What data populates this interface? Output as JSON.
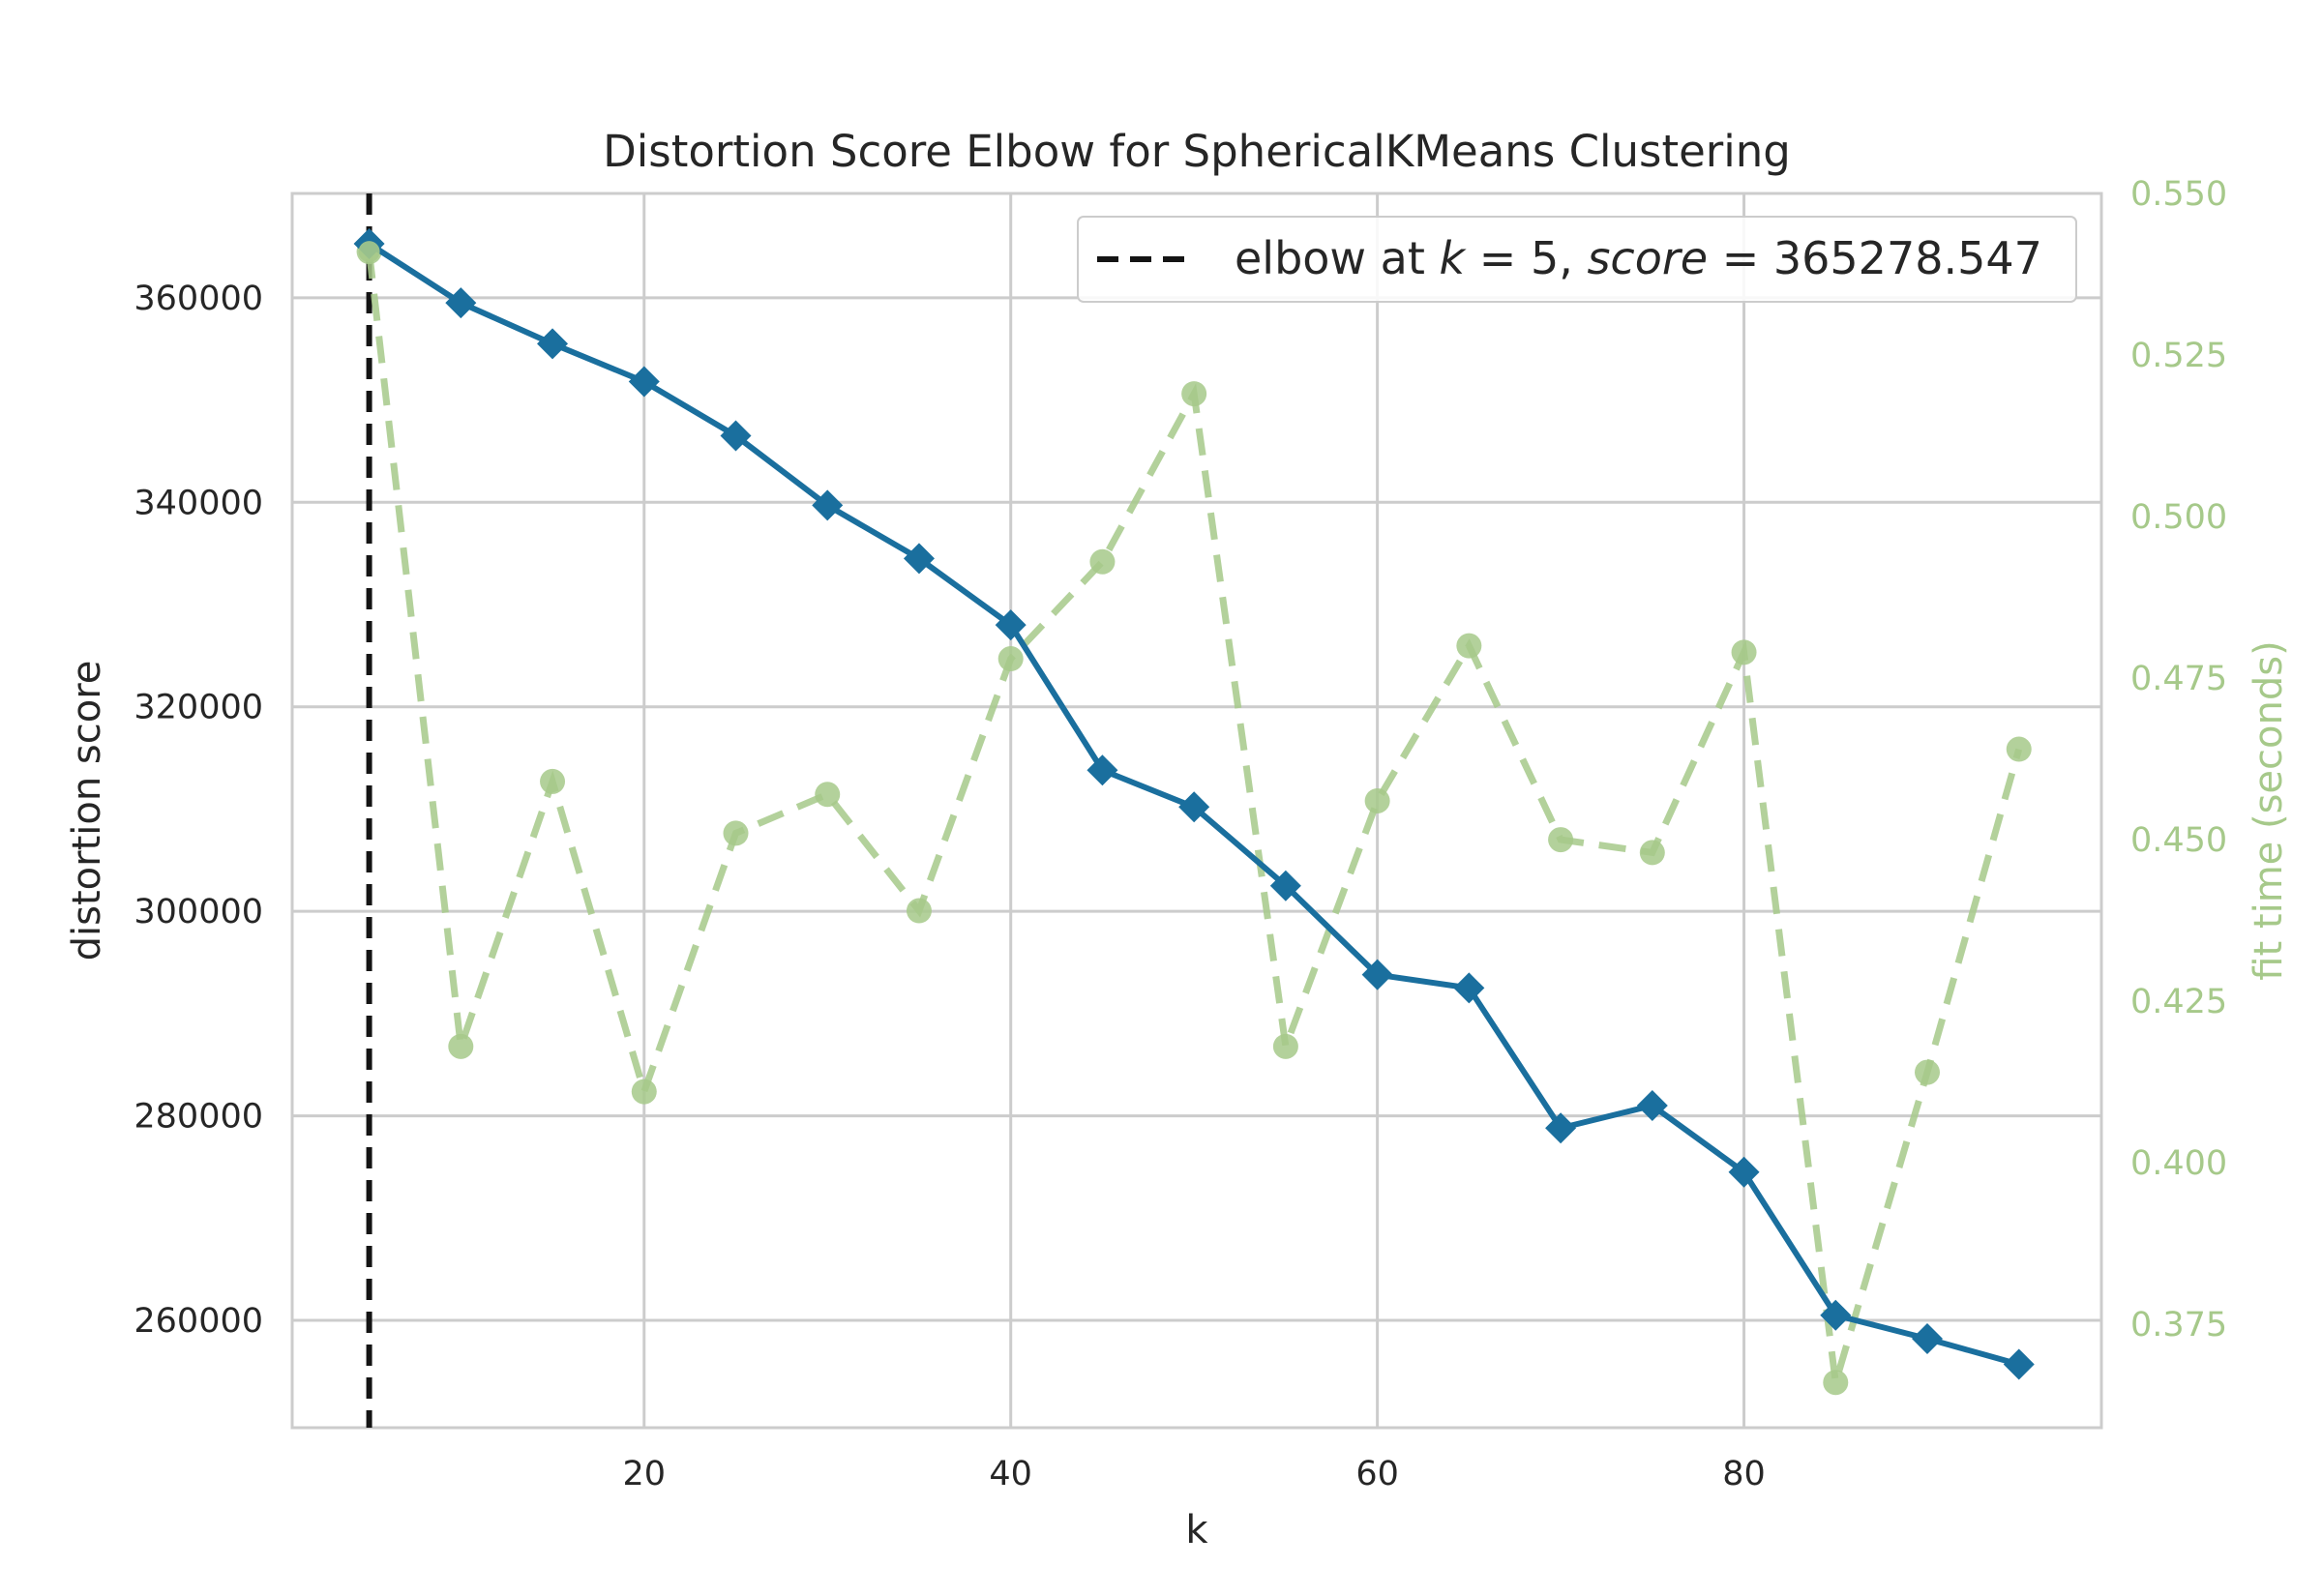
{
  "chart_data": {
    "type": "line",
    "title": "Distortion Score Elbow for SphericalKMeans Clustering",
    "xlabel": "k",
    "ylabel": "distortion score",
    "y2label": "fit time (seconds)",
    "xlim": [
      0.8,
      99.5
    ],
    "ylim": [
      249500,
      370200
    ],
    "y2lim": [
      0.359,
      0.55
    ],
    "xticks": [
      20,
      40,
      60,
      80
    ],
    "yticks": [
      260000,
      280000,
      300000,
      320000,
      340000,
      360000
    ],
    "y2ticks": [
      0.375,
      0.4,
      0.425,
      0.45,
      0.475,
      0.5,
      0.525,
      0.55
    ],
    "y2tick_labels": [
      "0.375",
      "0.400",
      "0.425",
      "0.450",
      "0.475",
      "0.500",
      "0.525",
      "0.550"
    ],
    "grid": true,
    "legend_position": "top-right",
    "legend": {
      "text_prefix": "elbow at ",
      "k_var": "k",
      "k_eq": " = 5, ",
      "score_var": "score",
      "score_eq": " = 365278.547"
    },
    "elbow_x": 5,
    "x": [
      5,
      10,
      15,
      20,
      25,
      30,
      35,
      40,
      45,
      50,
      55,
      60,
      65,
      70,
      75,
      80,
      85,
      90,
      95
    ],
    "series": [
      {
        "axis": "left",
        "color": "#1a6f9e",
        "values": [
          365279,
          359500,
          355500,
          351800,
          346500,
          339700,
          334500,
          328000,
          313800,
          310200,
          302500,
          293800,
          292500,
          278800,
          281000,
          274500,
          260500,
          258200,
          255700
        ]
      },
      {
        "axis": "right",
        "color": "#a6c98a",
        "values": [
          0.541,
          0.418,
          0.459,
          0.411,
          0.451,
          0.457,
          0.439,
          0.478,
          0.493,
          0.519,
          0.418,
          0.456,
          0.48,
          0.45,
          0.448,
          0.479,
          0.366,
          0.414,
          0.464
        ]
      }
    ]
  }
}
